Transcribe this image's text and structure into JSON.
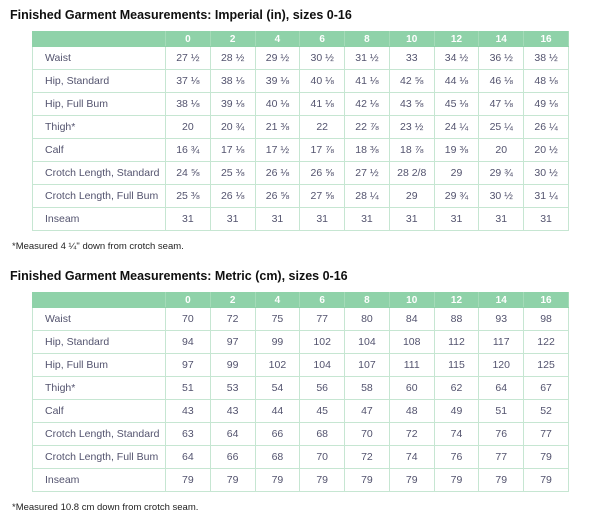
{
  "colors": {
    "header_bg": "#8fd2a9",
    "header_text": "#ffffff",
    "grid_border": "#c6e6d2",
    "cell_text": "#53536e",
    "title_text": "#0f0f0f"
  },
  "chart_data": [
    {
      "type": "table",
      "title": "Finished Garment Measurements: Imperial (in), sizes 0-16",
      "unit": "in",
      "sizes": [
        "0",
        "2",
        "4",
        "6",
        "8",
        "10",
        "12",
        "14",
        "16"
      ],
      "rows": [
        {
          "label": "Waist",
          "values": [
            "27 ½",
            "28 ½",
            "29 ½",
            "30 ½",
            "31 ½",
            "33",
            "34 ½",
            "36 ½",
            "38 ½"
          ]
        },
        {
          "label": "Hip, Standard",
          "values": [
            "37 ⅛",
            "38 ⅛",
            "39 ⅛",
            "40 ⅛",
            "41 ⅛",
            "42 ⅝",
            "44 ⅛",
            "46 ⅛",
            "48 ⅛"
          ]
        },
        {
          "label": "Hip, Full Bum",
          "values": [
            "38 ⅛",
            "39 ⅛",
            "40 ⅛",
            "41 ⅛",
            "42 ⅛",
            "43 ⅝",
            "45 ⅛",
            "47 ⅛",
            "49 ⅛"
          ]
        },
        {
          "label": "Thigh*",
          "values": [
            "20",
            "20 ¾",
            "21 ⅜",
            "22",
            "22 ⅞",
            "23 ½",
            "24 ¼",
            "25 ¼",
            "26 ¼"
          ]
        },
        {
          "label": "Calf",
          "values": [
            "16 ¾",
            "17 ⅛",
            "17 ½",
            "17 ⅞",
            "18 ⅜",
            "18 ⅞",
            "19 ⅜",
            "20",
            "20 ½"
          ]
        },
        {
          "label": "Crotch Length, Standard",
          "values": [
            "24 ⅝",
            "25 ⅜",
            "26 ⅛",
            "26 ⅝",
            "27 ½",
            "28 2/8",
            "29",
            "29 ¾",
            "30 ½"
          ]
        },
        {
          "label": "Crotch Length, Full Bum",
          "values": [
            "25 ⅜",
            "26 ⅛",
            "26 ⅝",
            "27 ⅝",
            "28 ¼",
            "29",
            "29 ¾",
            "30 ½",
            "31 ¼"
          ]
        },
        {
          "label": "Inseam",
          "values": [
            "31",
            "31",
            "31",
            "31",
            "31",
            "31",
            "31",
            "31",
            "31"
          ]
        }
      ],
      "footnote": "*Measured 4 ¼\" down from crotch seam."
    },
    {
      "type": "table",
      "title": "Finished Garment Measurements: Metric (cm), sizes 0-16",
      "unit": "cm",
      "sizes": [
        "0",
        "2",
        "4",
        "6",
        "8",
        "10",
        "12",
        "14",
        "16"
      ],
      "rows": [
        {
          "label": "Waist",
          "values": [
            "70",
            "72",
            "75",
            "77",
            "80",
            "84",
            "88",
            "93",
            "98"
          ]
        },
        {
          "label": "Hip, Standard",
          "values": [
            "94",
            "97",
            "99",
            "102",
            "104",
            "108",
            "112",
            "117",
            "122"
          ]
        },
        {
          "label": "Hip, Full Bum",
          "values": [
            "97",
            "99",
            "102",
            "104",
            "107",
            "111",
            "115",
            "120",
            "125"
          ]
        },
        {
          "label": "Thigh*",
          "values": [
            "51",
            "53",
            "54",
            "56",
            "58",
            "60",
            "62",
            "64",
            "67"
          ]
        },
        {
          "label": "Calf",
          "values": [
            "43",
            "43",
            "44",
            "45",
            "47",
            "48",
            "49",
            "51",
            "52"
          ]
        },
        {
          "label": "Crotch Length, Standard",
          "values": [
            "63",
            "64",
            "66",
            "68",
            "70",
            "72",
            "74",
            "76",
            "77"
          ]
        },
        {
          "label": "Crotch Length, Full Bum",
          "values": [
            "64",
            "66",
            "68",
            "70",
            "72",
            "74",
            "76",
            "77",
            "79"
          ]
        },
        {
          "label": "Inseam",
          "values": [
            "79",
            "79",
            "79",
            "79",
            "79",
            "79",
            "79",
            "79",
            "79"
          ]
        }
      ],
      "footnote": "*Measured 10.8 cm down from crotch seam."
    }
  ]
}
